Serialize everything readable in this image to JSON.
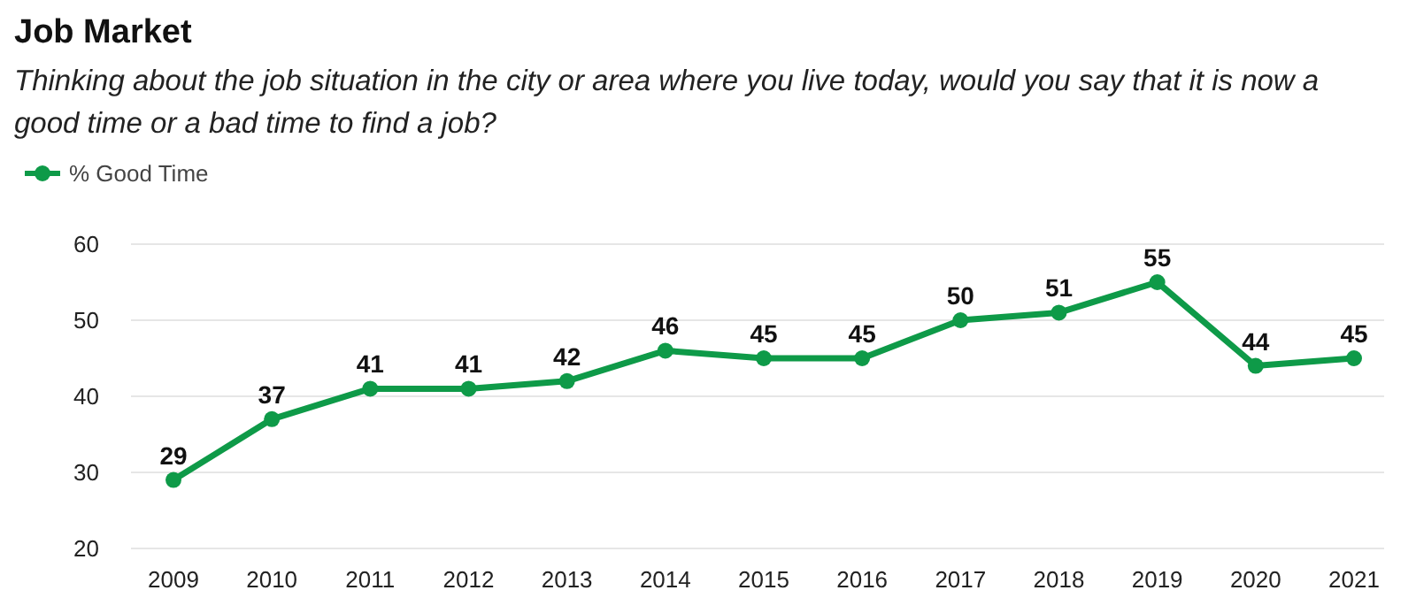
{
  "chart_data": {
    "type": "line",
    "title": "Job Market",
    "subtitle": "Thinking about the job situation in the city or area where you live today, would you say that it is now a good time or a bad time to find a job?",
    "categories": [
      "2009",
      "2010",
      "2011",
      "2012",
      "2013",
      "2014",
      "2015",
      "2016",
      "2017",
      "2018",
      "2019",
      "2020",
      "2021"
    ],
    "series": [
      {
        "name": "% Good Time",
        "color": "#0e9a48",
        "values": [
          29,
          37,
          41,
          41,
          42,
          46,
          45,
          45,
          50,
          51,
          55,
          44,
          45
        ]
      }
    ],
    "ylim": [
      20,
      60
    ],
    "yticks": [
      20,
      30,
      40,
      50,
      60
    ],
    "grid": "y",
    "legend": "top left",
    "marker": "circle",
    "line_style": "solid",
    "data_labels": true
  }
}
